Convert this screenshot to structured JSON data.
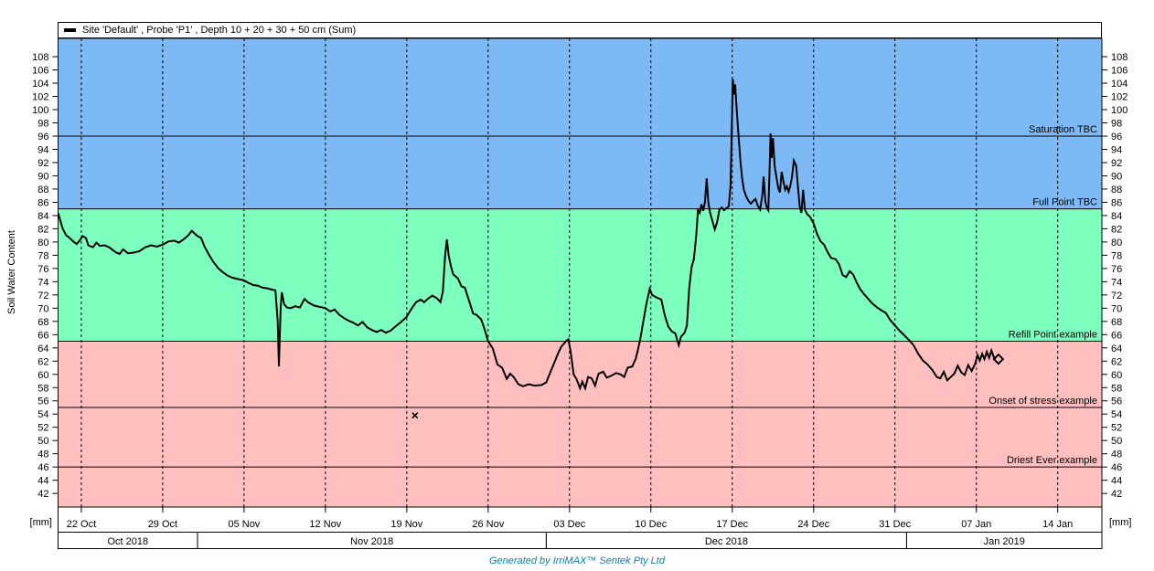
{
  "legend": {
    "series_label": "Site 'Default' , Probe 'P1' , Depth 10 + 20 + 30 + 50 cm (Sum)"
  },
  "y_axis": {
    "title": "Soil Water Content",
    "unit_label": "[mm]"
  },
  "footer": {
    "text": "Generated by IrriMAX™  Sentek Pty Ltd",
    "color": "#0d7ea8"
  },
  "chart_data": {
    "type": "line",
    "title": "Site 'Default' , Probe 'P1' , Depth 10 + 20 + 30 + 50 cm (Sum)",
    "ylabel": "Soil Water Content",
    "y_unit": "[mm]",
    "y_domain": [
      39.95,
      110.77
    ],
    "y_ticks_min": 42,
    "y_ticks_max": 108,
    "y_tick_step": 2,
    "x_domain_days": [
      0,
      89.8
    ],
    "x_gridlines": "dashed-vertical-weekly",
    "x_ticks": [
      {
        "day": 2,
        "label": "22 Oct"
      },
      {
        "day": 9,
        "label": "29 Oct"
      },
      {
        "day": 16,
        "label": "05 Nov"
      },
      {
        "day": 23,
        "label": "12 Nov"
      },
      {
        "day": 30,
        "label": "19 Nov"
      },
      {
        "day": 37,
        "label": "26 Nov"
      },
      {
        "day": 44,
        "label": "03 Dec"
      },
      {
        "day": 51,
        "label": "10 Dec"
      },
      {
        "day": 58,
        "label": "17 Dec"
      },
      {
        "day": 65,
        "label": "24 Dec"
      },
      {
        "day": 72,
        "label": "31 Dec"
      },
      {
        "day": 79,
        "label": "07 Jan"
      },
      {
        "day": 86,
        "label": "14 Jan"
      }
    ],
    "month_bands": [
      {
        "label": "Oct 2018",
        "start_day": 0,
        "end_day": 12
      },
      {
        "label": "Nov 2018",
        "start_day": 12,
        "end_day": 42
      },
      {
        "label": "Dec 2018",
        "start_day": 42,
        "end_day": 73
      },
      {
        "label": "Jan 2019",
        "start_day": 73,
        "end_day": 89.8
      }
    ],
    "bands": [
      {
        "name": "saturation-zone-blue",
        "color": "#7db9f5",
        "from": 85,
        "to": 110.77
      },
      {
        "name": "optimal-zone-green",
        "color": "#7dffbe",
        "from": 65,
        "to": 85
      },
      {
        "name": "stress-zone-red",
        "color": "#ffbfbf",
        "from": 39.95,
        "to": 65
      }
    ],
    "ref_lines": [
      {
        "label": "Saturation TBC",
        "value": 96
      },
      {
        "label": "Full Point TBC",
        "value": 85
      },
      {
        "label": "Refill Point example",
        "value": 65
      },
      {
        "label": "Onset of stress example",
        "value": 55
      },
      {
        "label": "Driest Ever example",
        "value": 46
      }
    ],
    "series": [
      {
        "name": "Site 'Default' , Probe 'P1' , Depth 10 + 20 + 30 + 50 cm (Sum)",
        "color": "#000000",
        "points": [
          [
            0,
            84.4
          ],
          [
            0.2,
            83.2
          ],
          [
            0.4,
            82
          ],
          [
            0.7,
            81
          ],
          [
            1,
            80.6
          ],
          [
            1.3,
            80.1
          ],
          [
            1.6,
            79.7
          ],
          [
            1.9,
            80.3
          ],
          [
            2.1,
            80.9
          ],
          [
            2.4,
            80.6
          ],
          [
            2.6,
            79.5
          ],
          [
            3,
            79.2
          ],
          [
            3.3,
            79.9
          ],
          [
            3.6,
            79.4
          ],
          [
            4,
            79.5
          ],
          [
            4.4,
            79.2
          ],
          [
            4.7,
            78.8
          ],
          [
            5,
            78.4
          ],
          [
            5.3,
            78.2
          ],
          [
            5.6,
            78.9
          ],
          [
            6,
            78.3
          ],
          [
            6.5,
            78.4
          ],
          [
            7,
            78.6
          ],
          [
            7.5,
            79.2
          ],
          [
            8,
            79.5
          ],
          [
            8.5,
            79.3
          ],
          [
            9,
            79.6
          ],
          [
            9.5,
            80.1
          ],
          [
            10,
            80.2
          ],
          [
            10.4,
            79.9
          ],
          [
            10.8,
            80.4
          ],
          [
            11.2,
            81
          ],
          [
            11.5,
            81.7
          ],
          [
            11.8,
            81.2
          ],
          [
            12,
            80.9
          ],
          [
            12.3,
            80.6
          ],
          [
            12.6,
            79.3
          ],
          [
            13,
            78
          ],
          [
            13.4,
            76.9
          ],
          [
            13.8,
            76
          ],
          [
            14.2,
            75.4
          ],
          [
            14.6,
            74.9
          ],
          [
            15,
            74.6
          ],
          [
            15.5,
            74.4
          ],
          [
            16,
            74.2
          ],
          [
            16.4,
            73.8
          ],
          [
            16.8,
            73.5
          ],
          [
            17.2,
            73.4
          ],
          [
            17.6,
            73.1
          ],
          [
            18,
            73
          ],
          [
            18.4,
            72.8
          ],
          [
            18.7,
            72.7
          ],
          [
            18.9,
            68
          ],
          [
            19,
            61.2
          ],
          [
            19.15,
            70
          ],
          [
            19.25,
            72.4
          ],
          [
            19.45,
            70.6
          ],
          [
            19.7,
            70.1
          ],
          [
            20,
            70
          ],
          [
            20.4,
            70.3
          ],
          [
            20.8,
            70.1
          ],
          [
            21.2,
            71.4
          ],
          [
            21.5,
            70.9
          ],
          [
            22,
            70.4
          ],
          [
            22.5,
            70.2
          ],
          [
            23,
            70
          ],
          [
            23.4,
            69.5
          ],
          [
            23.8,
            69.8
          ],
          [
            24.2,
            69
          ],
          [
            24.6,
            68.5
          ],
          [
            25,
            68.1
          ],
          [
            25.4,
            67.8
          ],
          [
            25.8,
            67.4
          ],
          [
            26.2,
            67.9
          ],
          [
            26.6,
            67.1
          ],
          [
            27,
            66.7
          ],
          [
            27.4,
            66.4
          ],
          [
            27.8,
            66.7
          ],
          [
            28.2,
            66.3
          ],
          [
            28.6,
            66.6
          ],
          [
            29,
            67.2
          ],
          [
            29.5,
            67.9
          ],
          [
            30,
            68.7
          ],
          [
            30.4,
            69.9
          ],
          [
            30.8,
            70.9
          ],
          [
            31.2,
            71.3
          ],
          [
            31.5,
            70.9
          ],
          [
            31.8,
            71.4
          ],
          [
            32.2,
            71.9
          ],
          [
            32.6,
            71.5
          ],
          [
            32.9,
            70.9
          ],
          [
            33.1,
            72.5
          ],
          [
            33.3,
            78
          ],
          [
            33.45,
            80.4
          ],
          [
            33.6,
            78
          ],
          [
            33.8,
            76.3
          ],
          [
            34,
            75.1
          ],
          [
            34.4,
            74.5
          ],
          [
            34.7,
            73.3
          ],
          [
            35,
            73.1
          ],
          [
            35.4,
            70.9
          ],
          [
            35.7,
            69.2
          ],
          [
            36,
            69
          ],
          [
            36.4,
            68.3
          ],
          [
            36.7,
            66.8
          ],
          [
            37,
            65
          ],
          [
            37.4,
            63.9
          ],
          [
            37.8,
            61.5
          ],
          [
            38.2,
            61
          ],
          [
            38.6,
            59.3
          ],
          [
            38.9,
            60.1
          ],
          [
            39.2,
            59.6
          ],
          [
            39.6,
            58.5
          ],
          [
            40,
            58.2
          ],
          [
            40.5,
            58.5
          ],
          [
            41,
            58.3
          ],
          [
            41.6,
            58.4
          ],
          [
            42,
            58.8
          ],
          [
            42.3,
            60.1
          ],
          [
            42.7,
            61.8
          ],
          [
            43,
            63.1
          ],
          [
            43.3,
            64.2
          ],
          [
            43.7,
            65
          ],
          [
            43.9,
            65.3
          ],
          [
            44.1,
            63.4
          ],
          [
            44.35,
            60
          ],
          [
            44.6,
            59.3
          ],
          [
            44.9,
            57.9
          ],
          [
            45.1,
            58.9
          ],
          [
            45.35,
            57.9
          ],
          [
            45.6,
            59.6
          ],
          [
            45.9,
            59.4
          ],
          [
            46.2,
            58.3
          ],
          [
            46.5,
            60.1
          ],
          [
            46.9,
            60.4
          ],
          [
            47.2,
            59.5
          ],
          [
            47.6,
            59.8
          ],
          [
            48,
            60.2
          ],
          [
            48.4,
            60
          ],
          [
            48.7,
            59.6
          ],
          [
            49,
            61
          ],
          [
            49.4,
            61.2
          ],
          [
            49.7,
            62.4
          ],
          [
            49.9,
            63.8
          ],
          [
            50.1,
            65.5
          ],
          [
            50.3,
            67.5
          ],
          [
            50.6,
            70.5
          ],
          [
            50.9,
            72.9
          ],
          [
            51.1,
            72
          ],
          [
            51.5,
            71.6
          ],
          [
            51.9,
            71.3
          ],
          [
            52.2,
            68.9
          ],
          [
            52.5,
            67.2
          ],
          [
            52.8,
            66.5
          ],
          [
            53.1,
            66.2
          ],
          [
            53.4,
            64.4
          ],
          [
            53.6,
            65.7
          ],
          [
            53.9,
            66.3
          ],
          [
            54.1,
            67.4
          ],
          [
            54.3,
            73
          ],
          [
            54.5,
            76.2
          ],
          [
            54.7,
            77.4
          ],
          [
            54.9,
            81
          ],
          [
            55.05,
            84.8
          ],
          [
            55.2,
            84.4
          ],
          [
            55.35,
            85.7
          ],
          [
            55.5,
            84.7
          ],
          [
            55.65,
            86
          ],
          [
            55.8,
            89.6
          ],
          [
            55.95,
            85.9
          ],
          [
            56.1,
            84.4
          ],
          [
            56.3,
            83.1
          ],
          [
            56.5,
            81.9
          ],
          [
            56.7,
            83
          ],
          [
            56.9,
            84.9
          ],
          [
            57.1,
            85.2
          ],
          [
            57.3,
            84.8
          ],
          [
            57.5,
            85.1
          ],
          [
            57.7,
            85.4
          ],
          [
            57.85,
            88.5
          ],
          [
            57.95,
            96
          ],
          [
            58.05,
            104.6
          ],
          [
            58.15,
            102.3
          ],
          [
            58.25,
            103.8
          ],
          [
            58.4,
            99.5
          ],
          [
            58.55,
            95.8
          ],
          [
            58.7,
            92.3
          ],
          [
            58.85,
            89.6
          ],
          [
            59,
            87.9
          ],
          [
            59.2,
            86.9
          ],
          [
            59.4,
            86.2
          ],
          [
            59.6,
            85.8
          ],
          [
            59.8,
            86.2
          ],
          [
            60,
            86.5
          ],
          [
            60.2,
            85.5
          ],
          [
            60.4,
            84.9
          ],
          [
            60.6,
            87.2
          ],
          [
            60.7,
            89.9
          ],
          [
            60.85,
            86.1
          ],
          [
            61,
            85.1
          ],
          [
            61.1,
            84.8
          ],
          [
            61.2,
            90
          ],
          [
            61.3,
            96.4
          ],
          [
            61.4,
            92.7
          ],
          [
            61.5,
            95.7
          ],
          [
            61.65,
            91.4
          ],
          [
            61.8,
            89.8
          ],
          [
            61.95,
            88.2
          ],
          [
            62.1,
            87.5
          ],
          [
            62.25,
            90.6
          ],
          [
            62.4,
            89.2
          ],
          [
            62.55,
            87.9
          ],
          [
            62.7,
            88.4
          ],
          [
            62.85,
            87.6
          ],
          [
            63,
            88.5
          ],
          [
            63.15,
            89.9
          ],
          [
            63.3,
            92.3
          ],
          [
            63.5,
            91.5
          ],
          [
            63.65,
            88.4
          ],
          [
            63.8,
            85.4
          ],
          [
            63.95,
            84.4
          ],
          [
            64.1,
            87.9
          ],
          [
            64.25,
            84.9
          ],
          [
            64.45,
            84.2
          ],
          [
            64.7,
            83.8
          ],
          [
            65,
            82.8
          ],
          [
            65.3,
            81.2
          ],
          [
            65.6,
            80.1
          ],
          [
            65.9,
            79.6
          ],
          [
            66.2,
            78.5
          ],
          [
            66.5,
            77.6
          ],
          [
            66.9,
            77.4
          ],
          [
            67.2,
            76.6
          ],
          [
            67.5,
            75
          ],
          [
            67.8,
            74.7
          ],
          [
            68.1,
            75.6
          ],
          [
            68.4,
            75.1
          ],
          [
            68.7,
            73.9
          ],
          [
            69,
            72.9
          ],
          [
            69.3,
            72.2
          ],
          [
            69.6,
            71.6
          ],
          [
            70,
            70.8
          ],
          [
            70.4,
            70.2
          ],
          [
            70.8,
            69.7
          ],
          [
            71.2,
            69.3
          ],
          [
            71.6,
            68.2
          ],
          [
            72,
            67.4
          ],
          [
            72.4,
            66.6
          ],
          [
            72.8,
            65.9
          ],
          [
            73.2,
            65.2
          ],
          [
            73.6,
            64.4
          ],
          [
            74,
            63.1
          ],
          [
            74.4,
            62.1
          ],
          [
            74.8,
            61.5
          ],
          [
            75.2,
            60.7
          ],
          [
            75.6,
            59.6
          ],
          [
            75.9,
            59.4
          ],
          [
            76.2,
            60.4
          ],
          [
            76.5,
            59.1
          ],
          [
            76.8,
            59.6
          ],
          [
            77.1,
            60.1
          ],
          [
            77.4,
            61.3
          ],
          [
            77.7,
            60.3
          ],
          [
            78,
            59.9
          ],
          [
            78.3,
            61.4
          ],
          [
            78.6,
            60.5
          ],
          [
            78.9,
            61.6
          ],
          [
            79.1,
            62.9
          ],
          [
            79.3,
            62.1
          ],
          [
            79.5,
            63.1
          ],
          [
            79.7,
            62.3
          ],
          [
            79.9,
            63.4
          ],
          [
            80.1,
            62.5
          ],
          [
            80.3,
            63.6
          ],
          [
            80.5,
            62.6
          ],
          [
            80.7,
            62.4
          ]
        ]
      }
    ],
    "isolated_point": {
      "day": 30.7,
      "value": 53.8
    },
    "end_marker": {
      "day": 80.9,
      "value": 62.3
    },
    "legend_position": "top",
    "grid": "weekly dashed vertical"
  }
}
